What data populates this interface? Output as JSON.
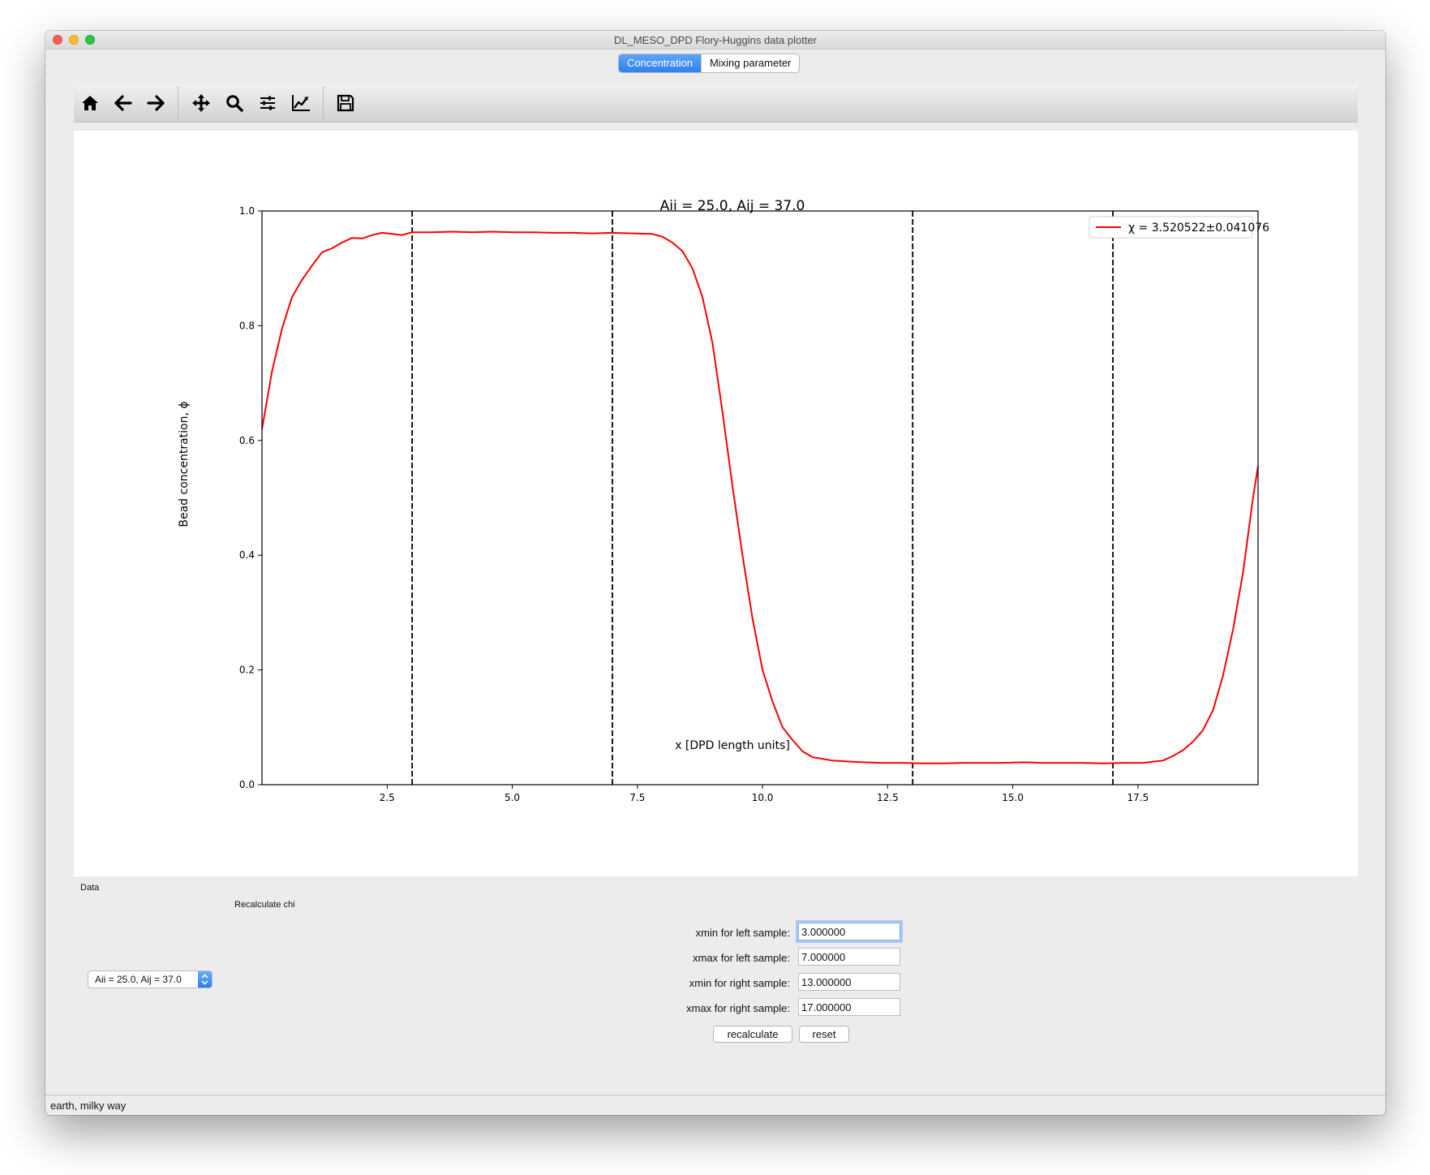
{
  "window": {
    "title": "DL_MESO_DPD Flory-Huggins data plotter"
  },
  "tabs": [
    {
      "label": "Concentration",
      "active": true
    },
    {
      "label": "Mixing parameter",
      "active": false
    }
  ],
  "toolbar": {
    "buttons": [
      "home-icon",
      "back-arrow-icon",
      "forward-arrow-icon",
      "pan-icon",
      "zoom-icon",
      "configure-subplots-icon",
      "edit-axis-icon",
      "save-icon"
    ]
  },
  "chart_data": {
    "type": "line",
    "title": "Aii = 25.0, Aij = 37.0",
    "xlabel": "x [DPD length units]",
    "ylabel": "Bead concentration, ϕ",
    "xlim": [
      0,
      19.9
    ],
    "ylim": [
      0,
      1.0
    ],
    "xticks": [
      2.5,
      5.0,
      7.5,
      10.0,
      12.5,
      15.0,
      17.5
    ],
    "yticks": [
      0.0,
      0.2,
      0.4,
      0.6,
      0.8,
      1.0
    ],
    "xtick_labels": [
      "2.5",
      "5.0",
      "7.5",
      "10.0",
      "12.5",
      "15.0",
      "17.5"
    ],
    "ytick_labels": [
      "0.0",
      "0.2",
      "0.4",
      "0.6",
      "0.8",
      "1.0"
    ],
    "grid": false,
    "legend_position": "top-right",
    "series": [
      {
        "name": "χ = 3.520522±0.041076",
        "color": "#ff0000",
        "x": [
          0.0,
          0.2,
          0.4,
          0.6,
          0.8,
          1.0,
          1.2,
          1.4,
          1.6,
          1.8,
          2.0,
          2.2,
          2.4,
          2.6,
          2.8,
          3.0,
          3.4,
          3.8,
          4.2,
          4.6,
          5.0,
          5.4,
          5.8,
          6.2,
          6.6,
          7.0,
          7.4,
          7.8,
          8.0,
          8.2,
          8.4,
          8.6,
          8.8,
          9.0,
          9.2,
          9.4,
          9.6,
          9.8,
          10.0,
          10.2,
          10.4,
          10.6,
          10.8,
          11.0,
          11.2,
          11.4,
          11.6,
          11.8,
          12.0,
          12.4,
          12.8,
          13.2,
          13.6,
          14.0,
          14.4,
          14.8,
          15.2,
          15.6,
          16.0,
          16.4,
          16.8,
          17.2,
          17.6,
          18.0,
          18.2,
          18.4,
          18.6,
          18.8,
          19.0,
          19.2,
          19.4,
          19.6,
          19.8,
          19.9
        ],
        "y": [
          0.62,
          0.72,
          0.795,
          0.85,
          0.88,
          0.905,
          0.928,
          0.935,
          0.945,
          0.953,
          0.952,
          0.958,
          0.962,
          0.96,
          0.958,
          0.963,
          0.963,
          0.964,
          0.963,
          0.964,
          0.963,
          0.963,
          0.962,
          0.962,
          0.961,
          0.962,
          0.961,
          0.96,
          0.955,
          0.945,
          0.93,
          0.9,
          0.85,
          0.77,
          0.65,
          0.52,
          0.4,
          0.29,
          0.2,
          0.145,
          0.1,
          0.078,
          0.058,
          0.048,
          0.045,
          0.042,
          0.041,
          0.04,
          0.039,
          0.038,
          0.038,
          0.037,
          0.037,
          0.038,
          0.038,
          0.038,
          0.039,
          0.038,
          0.038,
          0.038,
          0.037,
          0.038,
          0.038,
          0.042,
          0.05,
          0.06,
          0.075,
          0.095,
          0.13,
          0.19,
          0.27,
          0.37,
          0.5,
          0.555
        ]
      }
    ],
    "vlines": [
      3.0,
      7.0,
      13.0,
      17.0
    ]
  },
  "panel": {
    "data_label": "Data",
    "recalc_label": "Recalculate chi",
    "dataset_select": "Aii = 25.0, Aij = 37.0",
    "fields": [
      {
        "label": "xmin for left sample:",
        "value": "3.000000"
      },
      {
        "label": "xmax for left sample:",
        "value": "7.000000"
      },
      {
        "label": "xmin for right sample:",
        "value": "13.000000"
      },
      {
        "label": "xmax for right sample:",
        "value": "17.000000"
      }
    ],
    "recalculate_button": "recalculate",
    "reset_button": "reset"
  },
  "status": {
    "text": "earth, milky way"
  }
}
